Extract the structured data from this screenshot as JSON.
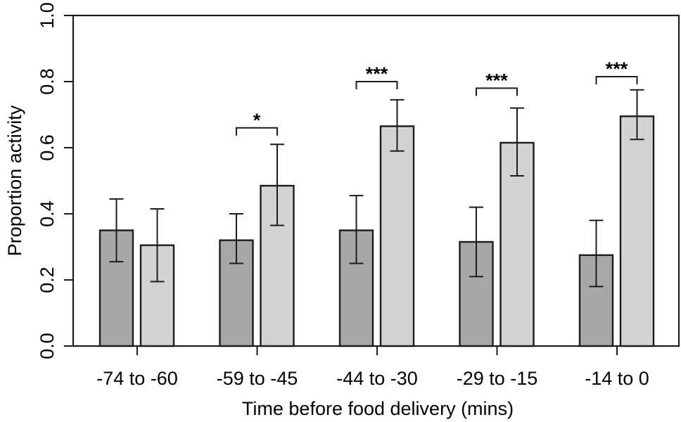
{
  "figure": {
    "background": "#ffffff",
    "line_color": "#1c1c1c",
    "text_color": "#000000"
  },
  "chart_data": {
    "type": "bar",
    "title": "",
    "xlabel": "Time before food delivery (mins)",
    "ylabel": "Proportion activity",
    "categories": [
      "-74 to -60",
      "-59 to -45",
      "-44 to -30",
      "-29 to -15",
      "-14 to 0"
    ],
    "series": [
      {
        "name": "dark-bars",
        "color": "#a7a7a7",
        "values": [
          0.35,
          0.32,
          0.35,
          0.315,
          0.275
        ],
        "error_low": [
          0.255,
          0.25,
          0.25,
          0.21,
          0.18
        ],
        "error_high": [
          0.445,
          0.4,
          0.455,
          0.42,
          0.38
        ]
      },
      {
        "name": "light-bars",
        "color": "#d3d3d3",
        "values": [
          0.305,
          0.485,
          0.665,
          0.615,
          0.695
        ],
        "error_low": [
          0.195,
          0.365,
          0.59,
          0.515,
          0.625
        ],
        "error_high": [
          0.415,
          0.61,
          0.745,
          0.72,
          0.775
        ]
      }
    ],
    "significance": [
      {
        "category_index": 1,
        "label": "*",
        "height": 0.66
      },
      {
        "category_index": 2,
        "label": "***",
        "height": 0.8
      },
      {
        "category_index": 3,
        "label": "***",
        "height": 0.78
      },
      {
        "category_index": 4,
        "label": "***",
        "height": 0.815
      }
    ],
    "ylim": [
      0.0,
      1.0
    ],
    "yticks": [
      0.0,
      0.2,
      0.4,
      0.6,
      0.8,
      1.0
    ],
    "ytick_labels": [
      "0.0",
      "0.2",
      "0.4",
      "0.6",
      "0.8",
      "1.0"
    ],
    "grid": false,
    "legend": "none",
    "style_note": "R-style full plot box, rotated y tick labels, paired bars with error bars and significance brackets"
  }
}
